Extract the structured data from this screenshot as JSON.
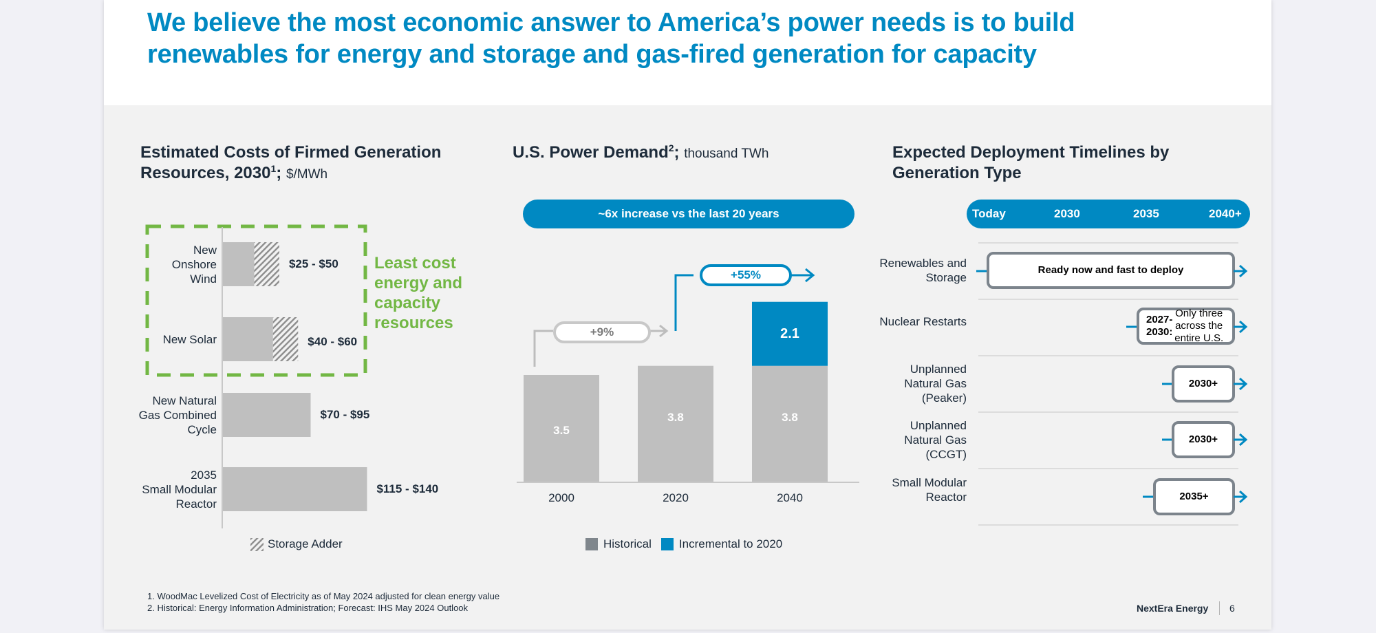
{
  "headline": "We believe the most economic answer to America’s power needs is to build renewables for energy and storage and gas-fired generation for capacity",
  "colors": {
    "brand_blue": "#0089c2",
    "green": "#72b744",
    "bar_gray": "#bfbfbf",
    "legend_gray": "#7f868c",
    "text_dark": "#1d2b3a"
  },
  "costs": {
    "title_main": "Estimated Costs of Firmed Generation Resources, 2030",
    "title_sup": "1",
    "title_sep": ";",
    "title_unit": "$/MWh",
    "callout": "Least cost energy and capacity resources",
    "legend_label": "Storage Adder",
    "legend_icon": "hatch-swatch-icon"
  },
  "demand": {
    "title_main": "U.S. Power Demand",
    "title_sup": "2",
    "title_sep": ";",
    "title_unit": "thousand TWh",
    "banner": "~6x increase vs the last 20 years",
    "growth_1": "+9%",
    "growth_2": "+55%",
    "legend": [
      {
        "label": "Historical",
        "color": "#7f868c"
      },
      {
        "label": "Incremental to 2020",
        "color": "#0089c2"
      }
    ]
  },
  "timeline": {
    "title": "Expected Deployment Timelines by Generation Type",
    "header": [
      "Today",
      "2030",
      "2035",
      "2040+"
    ],
    "rows": [
      {
        "label": "Renewables and Storage",
        "bold": "Ready now and fast to deploy",
        "text": "",
        "start": "Today"
      },
      {
        "label": "Nuclear Restarts",
        "bold": "2027-2030:",
        "text": " Only three across the entire U.S.",
        "start": "2027"
      },
      {
        "label": "Unplanned Natural Gas (Peaker)",
        "bold": "2030+",
        "text": "",
        "start": "2030"
      },
      {
        "label": "Unplanned Natural Gas (CCGT)",
        "bold": "2030+",
        "text": "",
        "start": "2030"
      },
      {
        "label": "Small Modular Reactor",
        "bold": "2035+",
        "text": "",
        "start": "2035"
      }
    ]
  },
  "footnotes": [
    "1.  WoodMac Levelized Cost of Electricity as of May 2024 adjusted for clean energy value",
    "2.  Historical: Energy Information Administration; Forecast: IHS May 2024 Outlook"
  ],
  "footer": {
    "brand": "NextEra Energy",
    "page": "6"
  },
  "chart_data": [
    {
      "type": "bar",
      "orientation": "horizontal",
      "title": "Estimated Costs of Firmed Generation Resources, 2030; $/MWh",
      "categories": [
        "New Onshore Wind",
        "New Solar",
        "New Natural Gas Combined Cycle",
        "2035 Small Modular Reactor"
      ],
      "category_lines": [
        [
          "New",
          "Onshore",
          "Wind"
        ],
        [
          "New Solar"
        ],
        [
          "New Natural",
          "Gas Combined",
          "Cycle"
        ],
        [
          "2035",
          "Small Modular",
          "Reactor"
        ]
      ],
      "series": [
        {
          "name": "Cost",
          "values": [
            25,
            40,
            70,
            115
          ]
        },
        {
          "name": "Storage Adder",
          "values": [
            20,
            20,
            0,
            0
          ]
        }
      ],
      "labels": [
        "$25 - $50",
        "$40 - $60",
        "$70 - $95",
        "$115 - $140"
      ],
      "highlighted": [
        "New Onshore Wind",
        "New Solar"
      ],
      "xlim": [
        0,
        140
      ]
    },
    {
      "type": "bar",
      "stacked": true,
      "title": "U.S. Power Demand; thousand TWh",
      "categories": [
        "2000",
        "2020",
        "2040"
      ],
      "series": [
        {
          "name": "Historical",
          "values": [
            3.5,
            3.8,
            3.8
          ]
        },
        {
          "name": "Incremental to 2020",
          "values": [
            0,
            0,
            2.1
          ]
        }
      ],
      "labels": [
        [
          "3.5",
          "3.8",
          "3.8"
        ],
        [
          "",
          "",
          "2.1"
        ]
      ],
      "ylim": [
        0,
        6.0
      ],
      "legend": "bottom"
    }
  ]
}
